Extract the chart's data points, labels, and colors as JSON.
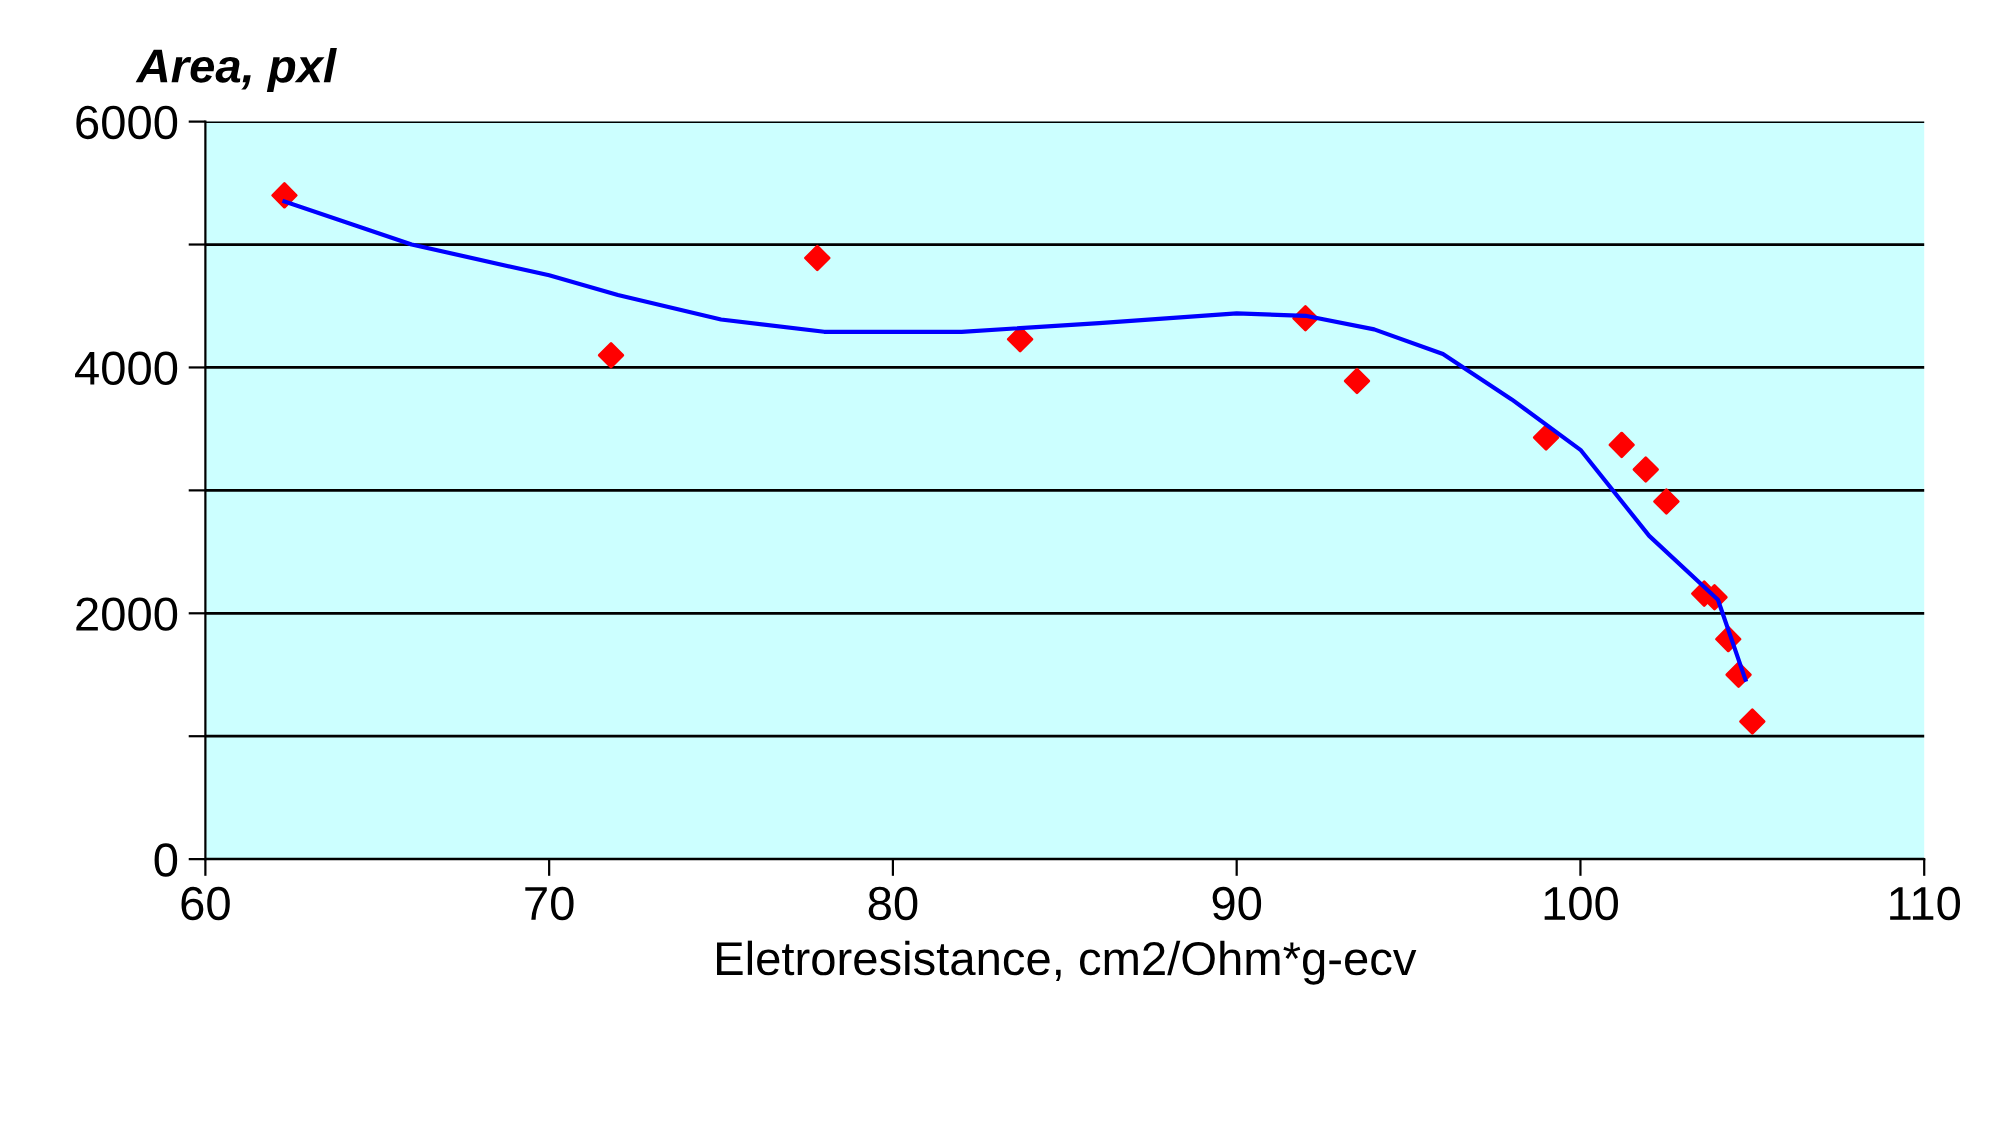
{
  "chart_data": {
    "type": "scatter",
    "ylabel": "Area, pxl",
    "xlabel": "Eletroresistance, cm2/Ohm*g-ecv",
    "xlim": [
      60,
      110
    ],
    "xticks": [
      60,
      70,
      80,
      90,
      100,
      110
    ],
    "ylim": [
      0,
      6000
    ],
    "yticks": [
      0,
      {
        "value": 1000,
        "label": null
      },
      2000,
      {
        "value": 3000,
        "label": null
      },
      4000,
      {
        "value": 5000,
        "label": null
      },
      6000
    ],
    "grid": "y",
    "series": [
      {
        "marker": "diamond",
        "color": "#ff0000",
        "x": [
          62.3,
          71.8,
          77.8,
          83.7,
          92.0,
          93.5,
          99.0,
          101.2,
          101.9,
          102.5,
          103.6,
          103.9,
          104.3,
          104.6,
          105.0
        ],
        "values": [
          5400,
          4100,
          4890,
          4230,
          4400,
          3890,
          3430,
          3370,
          3170,
          2910,
          2160,
          2130,
          1790,
          1500,
          1120
        ]
      },
      {
        "type": "line",
        "color": "#0000ff",
        "x": [
          62.3,
          66,
          70,
          72,
          75,
          78,
          82,
          86,
          90,
          92,
          94,
          96,
          98,
          100,
          102,
          104,
          104.8
        ],
        "values": [
          5350,
          5000,
          4750,
          4590,
          4390,
          4290,
          4290,
          4360,
          4440,
          4420,
          4310,
          4110,
          3740,
          3330,
          2630,
          2110,
          1460
        ]
      }
    ]
  }
}
